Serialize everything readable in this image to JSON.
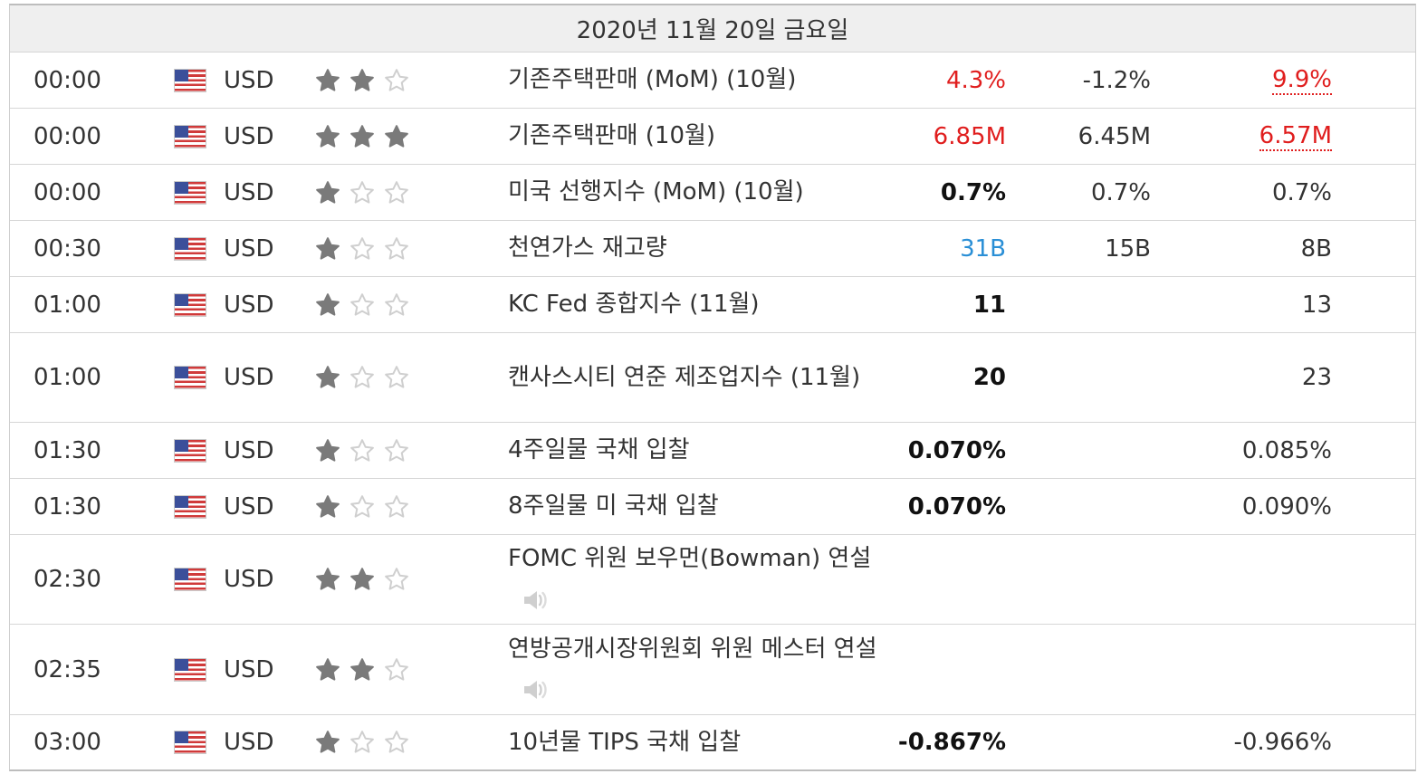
{
  "date_header": "2020년 11월 20일 금요일",
  "icons": {
    "flag": "us-flag-icon",
    "star_filled": "star-filled-icon",
    "star_empty": "star-empty-icon",
    "speaker": "speaker-icon"
  },
  "colors": {
    "up": "#e01e1e",
    "neutral_blue": "#2a8fd6",
    "star_filled": "#7a7a7a",
    "star_empty": "#cfcfcf"
  },
  "rows": [
    {
      "time": "00:00",
      "currency": "USD",
      "importance": 2,
      "event": "기존주택판매 (MoM) (10월)",
      "actual": "4.3%",
      "forecast": "-1.2%",
      "previous": "9.9%",
      "actual_style": "up",
      "previous_style": "revised",
      "speech": false,
      "height": 62
    },
    {
      "time": "00:00",
      "currency": "USD",
      "importance": 3,
      "event": "기존주택판매 (10월)",
      "actual": "6.85M",
      "forecast": "6.45M",
      "previous": "6.57M",
      "actual_style": "up",
      "previous_style": "revised",
      "speech": false,
      "height": 62
    },
    {
      "time": "00:00",
      "currency": "USD",
      "importance": 1,
      "event": "미국 선행지수 (MoM) (10월)",
      "actual": "0.7%",
      "forecast": "0.7%",
      "previous": "0.7%",
      "actual_style": "",
      "previous_style": "",
      "speech": false,
      "height": 62
    },
    {
      "time": "00:30",
      "currency": "USD",
      "importance": 1,
      "event": "천연가스 재고량",
      "actual": "31B",
      "forecast": "15B",
      "previous": "8B",
      "actual_style": "blue",
      "previous_style": "",
      "speech": false,
      "height": 62
    },
    {
      "time": "01:00",
      "currency": "USD",
      "importance": 1,
      "event": "KC Fed 종합지수 (11월)",
      "actual": "11",
      "forecast": "",
      "previous": "13",
      "actual_style": "",
      "previous_style": "",
      "speech": false,
      "height": 62
    },
    {
      "time": "01:00",
      "currency": "USD",
      "importance": 1,
      "event": "캔사스시티 연준 제조업지수 (11월)",
      "actual": "20",
      "forecast": "",
      "previous": "23",
      "actual_style": "",
      "previous_style": "",
      "speech": false,
      "height": 99
    },
    {
      "time": "01:30",
      "currency": "USD",
      "importance": 1,
      "event": "4주일물 국채 입찰",
      "actual": "0.070%",
      "forecast": "",
      "previous": "0.085%",
      "actual_style": "",
      "previous_style": "",
      "speech": false,
      "height": 62
    },
    {
      "time": "01:30",
      "currency": "USD",
      "importance": 1,
      "event": "8주일물 미 국채 입찰",
      "actual": "0.070%",
      "forecast": "",
      "previous": "0.090%",
      "actual_style": "",
      "previous_style": "",
      "speech": false,
      "height": 62
    },
    {
      "time": "02:30",
      "currency": "USD",
      "importance": 2,
      "event": "FOMC 위원 보우먼(Bowman) 연설",
      "actual": "",
      "forecast": "",
      "previous": "",
      "actual_style": "",
      "previous_style": "",
      "speech": true,
      "height": 99
    },
    {
      "time": "02:35",
      "currency": "USD",
      "importance": 2,
      "event": "연방공개시장위원회 위원 메스터 연설",
      "actual": "",
      "forecast": "",
      "previous": "",
      "actual_style": "",
      "previous_style": "",
      "speech": true,
      "height": 100
    },
    {
      "time": "03:00",
      "currency": "USD",
      "importance": 1,
      "event": "10년물 TIPS 국채 입찰",
      "actual": "-0.867%",
      "forecast": "",
      "previous": "-0.966%",
      "actual_style": "",
      "previous_style": "",
      "speech": false,
      "height": 60
    }
  ]
}
